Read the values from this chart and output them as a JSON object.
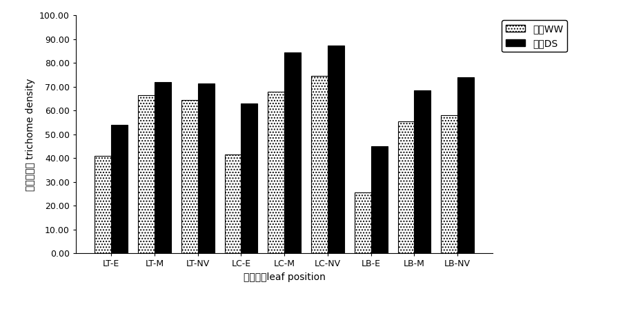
{
  "categories": [
    "LT-E",
    "LT-M",
    "LT-NV",
    "LC-E",
    "LC-M",
    "LC-NV",
    "LB-E",
    "LB-M",
    "LB-NV"
  ],
  "ww_values": [
    41.0,
    66.5,
    64.5,
    41.5,
    68.0,
    74.5,
    25.5,
    55.5,
    58.0
  ],
  "ds_values": [
    54.0,
    72.0,
    71.5,
    63.0,
    84.5,
    87.5,
    45.0,
    68.5,
    74.0
  ],
  "ww_label": "水地WW",
  "ds_label": "旱地DS",
  "ylabel": "表皮毛密度 trichome density",
  "xlabel": "叶片部位leaf position",
  "ylim": [
    0,
    100
  ],
  "yticks": [
    0.0,
    10.0,
    20.0,
    30.0,
    40.0,
    50.0,
    60.0,
    70.0,
    80.0,
    90.0,
    100.0
  ],
  "bar_width": 0.38,
  "ww_hatch": "....",
  "ds_color": "#000000",
  "background_color": "#ffffff",
  "axis_fontsize": 10,
  "tick_fontsize": 9,
  "legend_fontsize": 10
}
